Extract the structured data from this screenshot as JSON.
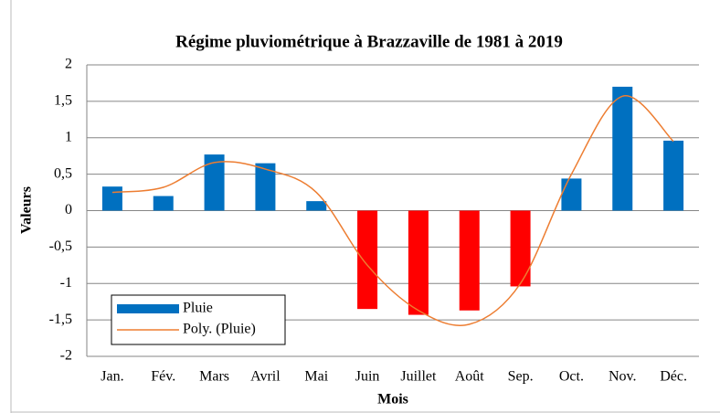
{
  "chart_data": {
    "type": "bar",
    "title": "Régime pluviométrique à Brazzaville de 1981 à 2019",
    "x_label": "Mois",
    "y_label": "Valeurs",
    "categories": [
      "Jan.",
      "Fév.",
      "Mars",
      "Avril",
      "Mai",
      "Juin",
      "Juillet",
      "Août",
      "Sep.",
      "Oct.",
      "Nov.",
      "Déc."
    ],
    "series": [
      {
        "name": "Pluie",
        "color": "#0070c0",
        "negative_color": "#ff0000",
        "values": [
          0.33,
          0.2,
          0.77,
          0.65,
          0.13,
          -1.35,
          -1.43,
          -1.37,
          -1.04,
          0.44,
          1.7,
          0.96
        ]
      },
      {
        "name": "Poly. (Pluie)",
        "type": "line",
        "color": "#ed7d31",
        "values": [
          0.25,
          0.32,
          0.66,
          0.57,
          0.25,
          -0.75,
          -1.37,
          -1.56,
          -1.0,
          0.5,
          1.57,
          0.95
        ]
      }
    ],
    "ylim": [
      -2,
      2
    ],
    "yticks": [
      2,
      {
        "value": 1.5,
        "label": "1,5"
      },
      1,
      {
        "value": 0.5,
        "label": "0,5"
      },
      0,
      {
        "value": -0.5,
        "label": "-0,5"
      },
      -1,
      {
        "value": -1.5,
        "label": "-1,5"
      },
      -2
    ],
    "grid": true,
    "legend": "bottom-left"
  }
}
